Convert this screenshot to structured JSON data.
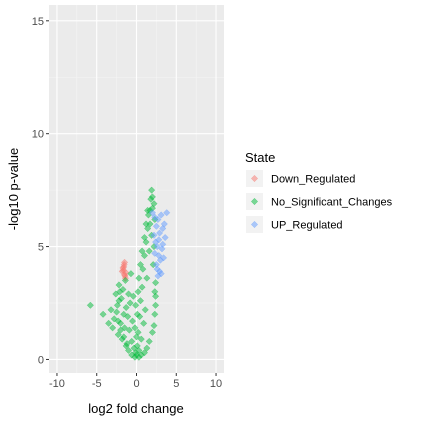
{
  "chart_data": {
    "type": "scatter",
    "title": "",
    "xlabel": "log2 fold change",
    "ylabel": "-log10 p-value",
    "xlim": [
      -11,
      11
    ],
    "ylim": [
      -0.6,
      15.7
    ],
    "x_ticks": [
      -10,
      -5,
      0,
      5,
      10
    ],
    "y_ticks": [
      0,
      5,
      10,
      15
    ],
    "grid": true,
    "legend": {
      "title": "State",
      "position": "right",
      "entries": [
        "Down_Regulated",
        "No_Significant_Changes",
        "UP_Regulated"
      ]
    },
    "series": [
      {
        "name": "Down_Regulated",
        "color": "#F8766D",
        "points": [
          [
            -1.6,
            4.1
          ],
          [
            -1.5,
            4.3
          ],
          [
            -1.45,
            3.7
          ],
          [
            -1.8,
            3.9
          ],
          [
            -1.55,
            4.2
          ],
          [
            -1.4,
            3.6
          ],
          [
            -1.65,
            3.95
          ],
          [
            -1.35,
            3.85
          ],
          [
            -1.7,
            4.05
          ],
          [
            -1.5,
            3.75
          ]
        ]
      },
      {
        "name": "No_Significant_Changes",
        "color": "#00BA38",
        "points": [
          [
            -5.8,
            2.4
          ],
          [
            -4.2,
            2.0
          ],
          [
            -3.5,
            1.6
          ],
          [
            -3.2,
            2.2
          ],
          [
            -3.0,
            1.4
          ],
          [
            -2.8,
            1.8
          ],
          [
            -2.6,
            2.9
          ],
          [
            -2.4,
            2.4
          ],
          [
            -2.3,
            1.1
          ],
          [
            -2.2,
            3.3
          ],
          [
            -2.0,
            1.6
          ],
          [
            -1.9,
            2.7
          ],
          [
            -1.8,
            0.9
          ],
          [
            -1.7,
            3.1
          ],
          [
            -1.6,
            2.0
          ],
          [
            -1.5,
            1.4
          ],
          [
            -1.4,
            3.5
          ],
          [
            -1.3,
            2.3
          ],
          [
            -1.2,
            0.7
          ],
          [
            -1.1,
            1.9
          ],
          [
            -1.0,
            2.9
          ],
          [
            -0.9,
            1.3
          ],
          [
            -0.8,
            2.5
          ],
          [
            -0.7,
            3.8
          ],
          [
            -0.6,
            0.8
          ],
          [
            -0.5,
            1.7
          ],
          [
            -0.4,
            2.8
          ],
          [
            -0.3,
            0.5
          ],
          [
            -0.2,
            1.4
          ],
          [
            -0.1,
            0.3
          ],
          [
            0.0,
            0.2
          ],
          [
            0.1,
            0.6
          ],
          [
            0.2,
            1.2
          ],
          [
            0.3,
            0.4
          ],
          [
            0.4,
            1.9
          ],
          [
            0.5,
            2.6
          ],
          [
            0.6,
            0.9
          ],
          [
            0.7,
            3.2
          ],
          [
            0.8,
            4.0
          ],
          [
            0.9,
            1.6
          ],
          [
            1.0,
            4.6
          ],
          [
            1.1,
            2.2
          ],
          [
            1.2,
            5.2
          ],
          [
            1.3,
            3.6
          ],
          [
            1.4,
            5.8
          ],
          [
            1.5,
            6.4
          ],
          [
            1.6,
            4.8
          ],
          [
            1.7,
            6.0
          ],
          [
            1.8,
            7.1
          ],
          [
            1.9,
            5.5
          ],
          [
            2.0,
            6.7
          ],
          [
            2.1,
            4.2
          ],
          [
            2.2,
            5.0
          ],
          [
            2.3,
            6.2
          ],
          [
            2.4,
            3.4
          ],
          [
            1.9,
            7.5
          ],
          [
            2.0,
            7.2
          ],
          [
            2.2,
            6.9
          ],
          [
            1.7,
            6.6
          ],
          [
            0.3,
            0.1
          ],
          [
            -0.2,
            0.1
          ],
          [
            0.6,
            0.2
          ],
          [
            -0.6,
            0.2
          ],
          [
            1.0,
            0.3
          ],
          [
            -1.0,
            0.4
          ],
          [
            1.3,
            0.5
          ],
          [
            -1.3,
            0.6
          ],
          [
            1.6,
            0.8
          ],
          [
            -1.6,
            1.0
          ],
          [
            2.0,
            1.2
          ],
          [
            -2.0,
            1.3
          ],
          [
            2.2,
            1.5
          ],
          [
            -2.3,
            1.7
          ],
          [
            2.3,
            2.0
          ],
          [
            -2.5,
            2.1
          ],
          [
            2.4,
            2.4
          ],
          [
            2.4,
            2.8
          ],
          [
            2.3,
            3.0
          ],
          [
            -2.2,
            2.6
          ],
          [
            -2.1,
            3.0
          ],
          [
            0.0,
            1.0
          ],
          [
            0.1,
            2.0
          ],
          [
            -0.1,
            2.4
          ],
          [
            0.2,
            3.0
          ],
          [
            0.3,
            3.6
          ],
          [
            0.5,
            4.2
          ],
          [
            0.7,
            4.8
          ],
          [
            1.0,
            5.4
          ],
          [
            1.2,
            6.0
          ],
          [
            1.4,
            6.6
          ]
        ]
      },
      {
        "name": "UP_Regulated",
        "color": "#619CFF",
        "points": [
          [
            2.0,
            6.5
          ],
          [
            2.3,
            6.3
          ],
          [
            2.5,
            5.9
          ],
          [
            2.7,
            6.2
          ],
          [
            2.9,
            5.6
          ],
          [
            3.1,
            6.4
          ],
          [
            3.3,
            5.8
          ],
          [
            3.5,
            6.0
          ],
          [
            3.8,
            6.5
          ],
          [
            2.4,
            5.2
          ],
          [
            2.6,
            5.0
          ],
          [
            2.8,
            4.6
          ],
          [
            3.0,
            4.4
          ],
          [
            3.2,
            4.9
          ],
          [
            2.5,
            4.2
          ],
          [
            2.9,
            3.9
          ],
          [
            3.4,
            4.5
          ],
          [
            2.2,
            5.5
          ],
          [
            2.6,
            4.0
          ],
          [
            3.1,
            3.8
          ],
          [
            2.8,
            5.3
          ],
          [
            3.6,
            5.4
          ],
          [
            2.3,
            4.7
          ],
          [
            2.7,
            3.7
          ],
          [
            3.3,
            5.1
          ]
        ]
      }
    ]
  }
}
